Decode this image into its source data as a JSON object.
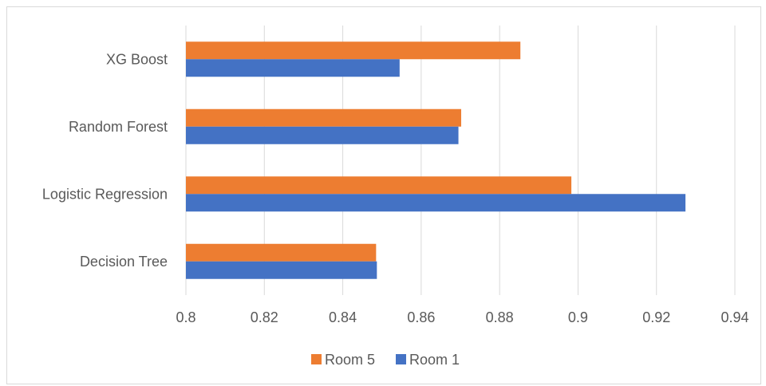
{
  "chart_data": {
    "type": "bar",
    "orientation": "horizontal",
    "categories": [
      "Decision Tree",
      "Logistic Regression",
      "Random Forest",
      "XG Boost"
    ],
    "series": [
      {
        "name": "Room 5",
        "color": "#ED7D31",
        "values": [
          0.8485,
          0.8983,
          0.8702,
          0.8853
        ]
      },
      {
        "name": "Room 1",
        "color": "#4472C4",
        "values": [
          0.8487,
          0.9274,
          0.8695,
          0.8545
        ]
      }
    ],
    "x_ticks": [
      "0.8",
      "0.82",
      "0.84",
      "0.86",
      "0.88",
      "0.9",
      "0.92",
      "0.94"
    ],
    "xlim": [
      0.8,
      0.94
    ],
    "title": "",
    "xlabel": "",
    "ylabel": "",
    "grid": "vertical",
    "legend": {
      "position": "bottom",
      "items": [
        {
          "name": "Room 5",
          "color": "#ED7D31"
        },
        {
          "name": "Room 1",
          "color": "#4472C4"
        }
      ]
    }
  }
}
